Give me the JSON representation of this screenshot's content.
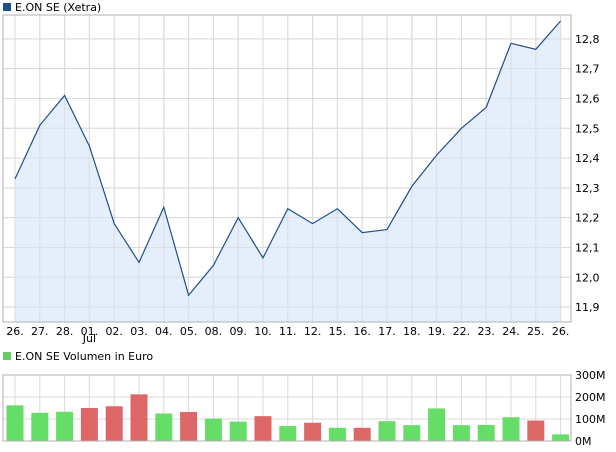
{
  "colors": {
    "price_line": "#1f4e8c",
    "price_area": "#e1ebfa",
    "price_legend": "#1f4e8c",
    "volume_legend": "#66cc66",
    "volume_up": "#66dd66",
    "volume_down": "#dd6666",
    "grid": "#d9d9d9",
    "border": "#b0b0b0"
  },
  "chart_data": [
    {
      "type": "area",
      "legend": "E.ON SE (Xetra)",
      "legend_position": "top-left",
      "grid": true,
      "x_tick_labels": [
        "26.",
        "27.",
        "28.",
        "01.",
        "02.",
        "03.",
        "04.",
        "05.",
        "08.",
        "09.",
        "10.",
        "11.",
        "12.",
        "15.",
        "16.",
        "17.",
        "18.",
        "19.",
        "22.",
        "23.",
        "24.",
        "25.",
        "26."
      ],
      "x_sublabel": {
        "under": "01.",
        "text": "Jul"
      },
      "y_tick_labels": [
        "12,8",
        "12,7",
        "12,6",
        "12,5",
        "12,4",
        "12,3",
        "12,2",
        "12,1",
        "12,0",
        "11,9"
      ],
      "ylim": [
        11.85,
        12.88
      ],
      "x": [
        0,
        1,
        2,
        3,
        4,
        5,
        6,
        7,
        8,
        9,
        10,
        11,
        12,
        13,
        14,
        15,
        16,
        17,
        18,
        19,
        20,
        21,
        22
      ],
      "values": [
        12.33,
        12.51,
        12.61,
        12.44,
        12.18,
        12.05,
        12.235,
        11.94,
        12.04,
        12.2,
        12.065,
        12.23,
        12.18,
        12.23,
        12.15,
        12.16,
        12.305,
        12.41,
        12.5,
        12.57,
        12.785,
        12.765,
        12.86
      ]
    },
    {
      "type": "bar",
      "legend": "E.ON SE Volumen in Euro",
      "legend_position": "top-left",
      "grid": true,
      "y_tick_labels": [
        "300M",
        "200M",
        "100M",
        "0M"
      ],
      "ylim": [
        0,
        300
      ],
      "unit": "M Euro",
      "values": [
        162,
        128,
        133,
        150,
        158,
        212,
        125,
        132,
        102,
        88,
        113,
        68,
        83,
        60,
        60,
        90,
        72,
        148,
        72,
        73,
        108,
        93,
        30
      ],
      "directions": [
        "up",
        "up",
        "up",
        "down",
        "down",
        "down",
        "up",
        "down",
        "up",
        "up",
        "down",
        "up",
        "down",
        "up",
        "down",
        "up",
        "up",
        "up",
        "up",
        "up",
        "up",
        "down",
        "up"
      ]
    }
  ]
}
